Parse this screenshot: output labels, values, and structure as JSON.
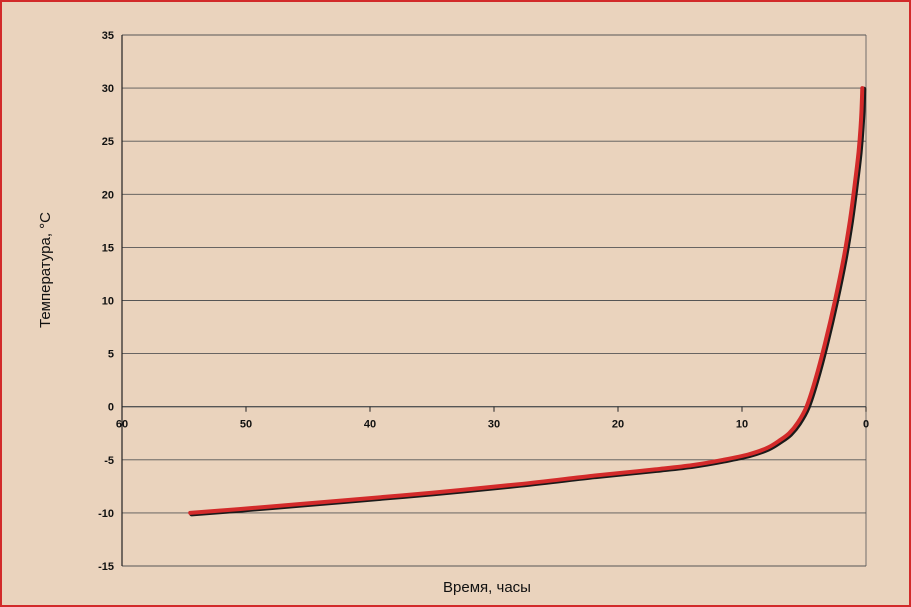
{
  "colors": {
    "background": "#ead3bd",
    "border": "#d22a2a",
    "curve": "#d32a2a",
    "grid": "#555555"
  },
  "chart_data": {
    "type": "line",
    "title": "",
    "xlabel": "Время, часы",
    "ylabel": "Температура, °C",
    "xlim": [
      60,
      0
    ],
    "ylim": [
      -15,
      35
    ],
    "x_reversed": true,
    "x_ticks": [
      "60",
      "50",
      "40",
      "30",
      "20",
      "10",
      "0"
    ],
    "y_ticks": [
      "35",
      "30",
      "25",
      "20",
      "15",
      "10",
      "5",
      "0",
      "-5",
      "-10",
      "-15"
    ],
    "grid": true,
    "series": [
      {
        "x": [
          0.3,
          0.4,
          0.6,
          0.9,
          1.3,
          1.8,
          2.5,
          3.3,
          4.1,
          4.8,
          5.5,
          6.2,
          7.0,
          8.0,
          9.5,
          11.5,
          14.0,
          17.0,
          22.0,
          28.0,
          35.0,
          42.0,
          48.0,
          54.5
        ],
        "y": [
          30,
          27,
          24,
          21,
          17.5,
          14,
          10,
          6,
          2.5,
          0,
          -1.5,
          -2.5,
          -3.2,
          -3.9,
          -4.5,
          -5.0,
          -5.5,
          -5.9,
          -6.5,
          -7.3,
          -8.1,
          -8.8,
          -9.4,
          -10
        ]
      }
    ]
  }
}
